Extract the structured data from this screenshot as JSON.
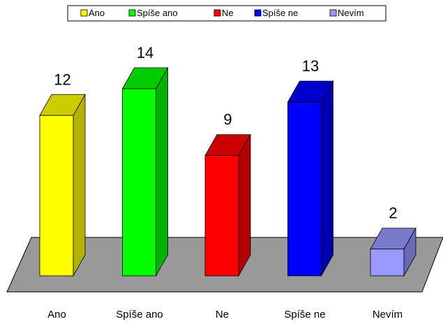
{
  "chart_data": {
    "type": "bar3d",
    "categories": [
      "Ano",
      "Spíše ano",
      "Ne",
      "Spíše ne",
      "Nevím"
    ],
    "values": [
      12,
      14,
      9,
      13,
      2
    ],
    "colors": [
      "#ffff00",
      "#00ff00",
      "#ff0000",
      "#0000ff",
      "#9999ff"
    ],
    "legend": "top"
  }
}
